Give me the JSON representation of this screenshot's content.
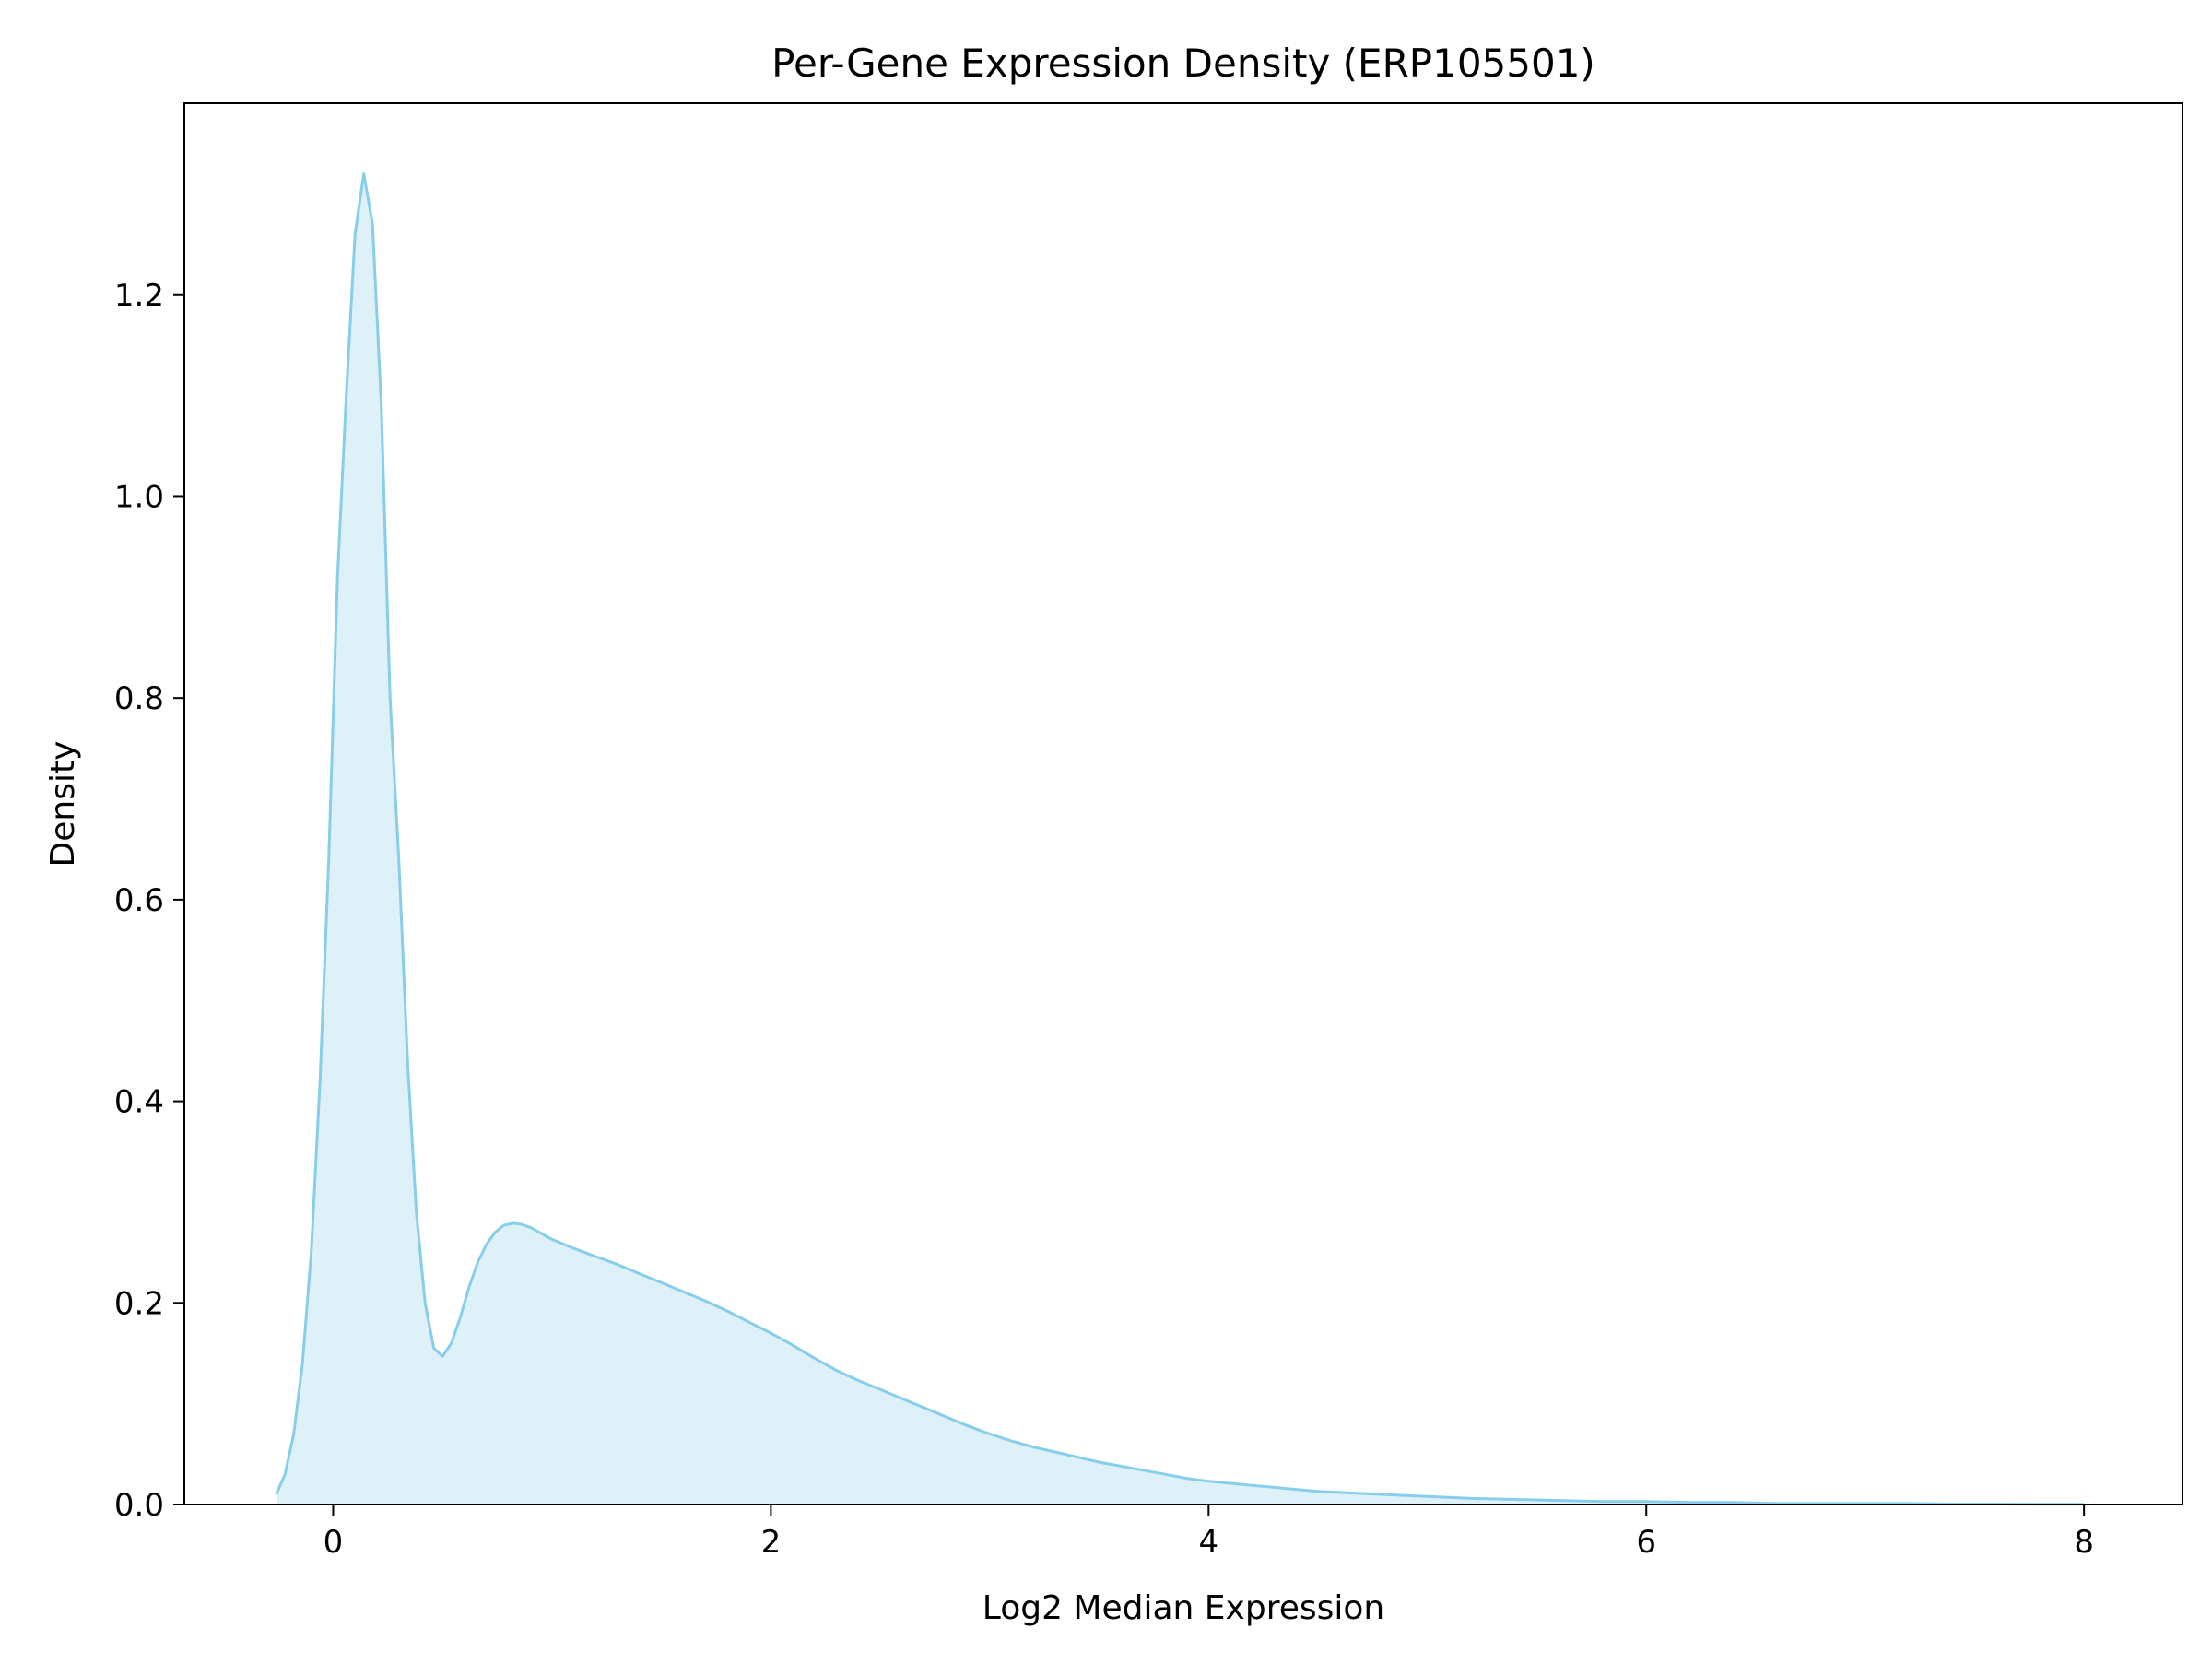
{
  "chart_data": {
    "type": "area",
    "title": "Per-Gene Expression Density (ERP105501)",
    "xlabel": "Log2 Median Expression",
    "ylabel": "Density",
    "xlim": [
      -0.68,
      8.45
    ],
    "ylim": [
      0,
      1.39
    ],
    "xticks": [
      0,
      2,
      4,
      6,
      8
    ],
    "yticks": [
      0.0,
      0.2,
      0.4,
      0.6,
      0.8,
      1.0,
      1.2
    ],
    "xtick_labels": [
      "0",
      "2",
      "4",
      "6",
      "8"
    ],
    "ytick_labels": [
      "0.0",
      "0.2",
      "0.4",
      "0.6",
      "0.8",
      "1.0",
      "1.2"
    ],
    "grid": false,
    "legend": false,
    "line_color": "#87ceeb",
    "fill_color": "#87ceeb",
    "fill_opacity": 0.28,
    "series": [
      {
        "x": [
          -0.26,
          -0.22,
          -0.18,
          -0.14,
          -0.1,
          -0.06,
          -0.02,
          0.02,
          0.06,
          0.1,
          0.14,
          0.18,
          0.22,
          0.26,
          0.3,
          0.34,
          0.38,
          0.42,
          0.46,
          0.5,
          0.54,
          0.58,
          0.62,
          0.66,
          0.7,
          0.74,
          0.78,
          0.82,
          0.86,
          0.9,
          0.95,
          1.0,
          1.1,
          1.2,
          1.3,
          1.4,
          1.5,
          1.6,
          1.7,
          1.8,
          1.9,
          2.0,
          2.1,
          2.2,
          2.3,
          2.4,
          2.5,
          2.6,
          2.7,
          2.8,
          2.9,
          3.0,
          3.1,
          3.2,
          3.3,
          3.4,
          3.5,
          3.6,
          3.7,
          3.8,
          3.9,
          4.0,
          4.1,
          4.2,
          4.3,
          4.4,
          4.5,
          4.6,
          4.7,
          4.8,
          5.0,
          5.2,
          5.4,
          5.6,
          5.8,
          6.0,
          6.2,
          6.4,
          6.6,
          6.8,
          7.0,
          7.2,
          7.4,
          7.6,
          7.8,
          8.0
        ],
        "y": [
          0.01,
          0.03,
          0.07,
          0.14,
          0.25,
          0.42,
          0.64,
          0.92,
          1.1,
          1.26,
          1.32,
          1.27,
          1.09,
          0.8,
          0.64,
          0.44,
          0.29,
          0.2,
          0.155,
          0.147,
          0.16,
          0.185,
          0.215,
          0.24,
          0.258,
          0.27,
          0.277,
          0.279,
          0.278,
          0.275,
          0.269,
          0.263,
          0.254,
          0.246,
          0.238,
          0.229,
          0.22,
          0.211,
          0.202,
          0.192,
          0.181,
          0.17,
          0.158,
          0.145,
          0.133,
          0.123,
          0.114,
          0.105,
          0.096,
          0.087,
          0.078,
          0.07,
          0.063,
          0.057,
          0.052,
          0.047,
          0.042,
          0.038,
          0.034,
          0.03,
          0.026,
          0.023,
          0.021,
          0.019,
          0.017,
          0.015,
          0.013,
          0.012,
          0.011,
          0.01,
          0.008,
          0.006,
          0.005,
          0.004,
          0.003,
          0.003,
          0.002,
          0.002,
          0.001,
          0.001,
          0.001,
          0.001,
          0.0005,
          0.0005,
          0.0003,
          0.0002
        ]
      }
    ]
  }
}
